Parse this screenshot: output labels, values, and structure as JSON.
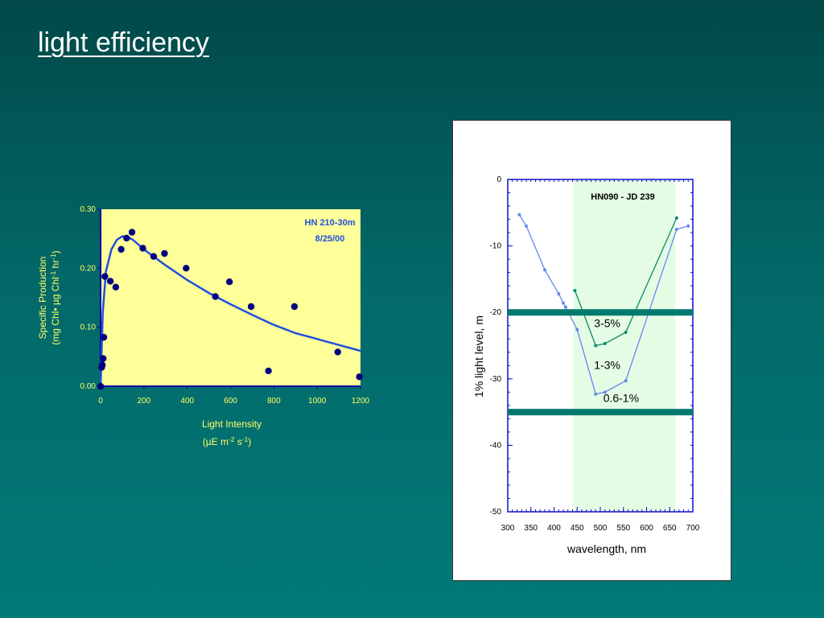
{
  "slide": {
    "title": "light efficiency"
  },
  "chart_data": [
    {
      "type": "scatter",
      "title": "",
      "annotation": [
        "HN 210-30m",
        "8/25/00"
      ],
      "xlabel": [
        "Light Intensity",
        "(µE m-2 s-1)"
      ],
      "ylabel": [
        "Specific Production",
        "(mg Chl• µg Chl-1 hr-1)"
      ],
      "xlim": [
        0,
        1200
      ],
      "ylim": [
        0,
        0.3
      ],
      "xticks": [
        "0",
        "200",
        "400",
        "600",
        "800",
        "1000",
        "1200"
      ],
      "yticks": [
        "0.00",
        "0.10",
        "0.20",
        "0.30"
      ],
      "points": [
        [
          0,
          0.0
        ],
        [
          5,
          0.032
        ],
        [
          8,
          0.036
        ],
        [
          12,
          0.047
        ],
        [
          15,
          0.083
        ],
        [
          20,
          0.186
        ],
        [
          45,
          0.178
        ],
        [
          70,
          0.168
        ],
        [
          95,
          0.232
        ],
        [
          120,
          0.251
        ],
        [
          145,
          0.261
        ],
        [
          195,
          0.234
        ],
        [
          245,
          0.22
        ],
        [
          295,
          0.225
        ],
        [
          395,
          0.2
        ],
        [
          530,
          0.152
        ],
        [
          595,
          0.177
        ],
        [
          695,
          0.135
        ],
        [
          775,
          0.026
        ],
        [
          895,
          0.135
        ],
        [
          1095,
          0.058
        ],
        [
          1195,
          0.016
        ]
      ],
      "fit": [
        [
          0,
          0.0
        ],
        [
          10,
          0.125
        ],
        [
          25,
          0.195
        ],
        [
          50,
          0.232
        ],
        [
          75,
          0.248
        ],
        [
          100,
          0.254
        ],
        [
          125,
          0.253
        ],
        [
          150,
          0.248
        ],
        [
          200,
          0.232
        ],
        [
          300,
          0.205
        ],
        [
          400,
          0.18
        ],
        [
          500,
          0.158
        ],
        [
          600,
          0.139
        ],
        [
          700,
          0.121
        ],
        [
          800,
          0.104
        ],
        [
          900,
          0.09
        ],
        [
          1000,
          0.08
        ],
        [
          1100,
          0.07
        ],
        [
          1200,
          0.06
        ]
      ],
      "colors": {
        "plot_bg": "#ffff99",
        "point": "#000080",
        "fit": "#1f4fe0",
        "text": "#ffff66",
        "annotation": "#1f4fe0"
      }
    },
    {
      "type": "line",
      "title": "HN090 - JD 239",
      "xlabel": "wavelength, nm",
      "ylabel": "1% light level, m",
      "xlim": [
        300,
        700
      ],
      "ylim": [
        -50,
        0
      ],
      "xticks": [
        "300",
        "350",
        "400",
        "450",
        "500",
        "550",
        "600",
        "650",
        "700"
      ],
      "yticks": [
        "0",
        "-10",
        "-20",
        "-30",
        "-40",
        "-50"
      ],
      "shaded_band": [
        442,
        662
      ],
      "depth_lines": [
        -20,
        -35
      ],
      "zone_labels": [
        {
          "text": "3-5%",
          "x": 515,
          "y": -22.2
        },
        {
          "text": "1-3%",
          "x": 515,
          "y": -28.5
        },
        {
          "text": "0.6-1%",
          "x": 545,
          "y": -33.5
        }
      ],
      "series": [
        {
          "values": [
            [
              325,
              -5.3
            ],
            [
              340,
              -7.0
            ],
            [
              380,
              -13.6
            ],
            [
              410,
              -17.2
            ],
            [
              420,
              -18.6
            ],
            [
              425,
              -19.2
            ],
            [
              450,
              -22.6
            ],
            [
              490,
              -32.3
            ],
            [
              510,
              -32.0
            ],
            [
              555,
              -30.3
            ],
            [
              665,
              -7.5
            ],
            [
              690,
              -7.0
            ]
          ],
          "color": "#6688ee"
        },
        {
          "values": [
            [
              445,
              -16.7
            ],
            [
              490,
              -25.0
            ],
            [
              510,
              -24.7
            ],
            [
              555,
              -23.0
            ],
            [
              665,
              -5.8
            ]
          ],
          "color": "#0a8a6a"
        }
      ],
      "colors": {
        "band": "#e4fbe4",
        "depth_line": "#007a70",
        "axis": "#1010cc"
      }
    }
  ]
}
